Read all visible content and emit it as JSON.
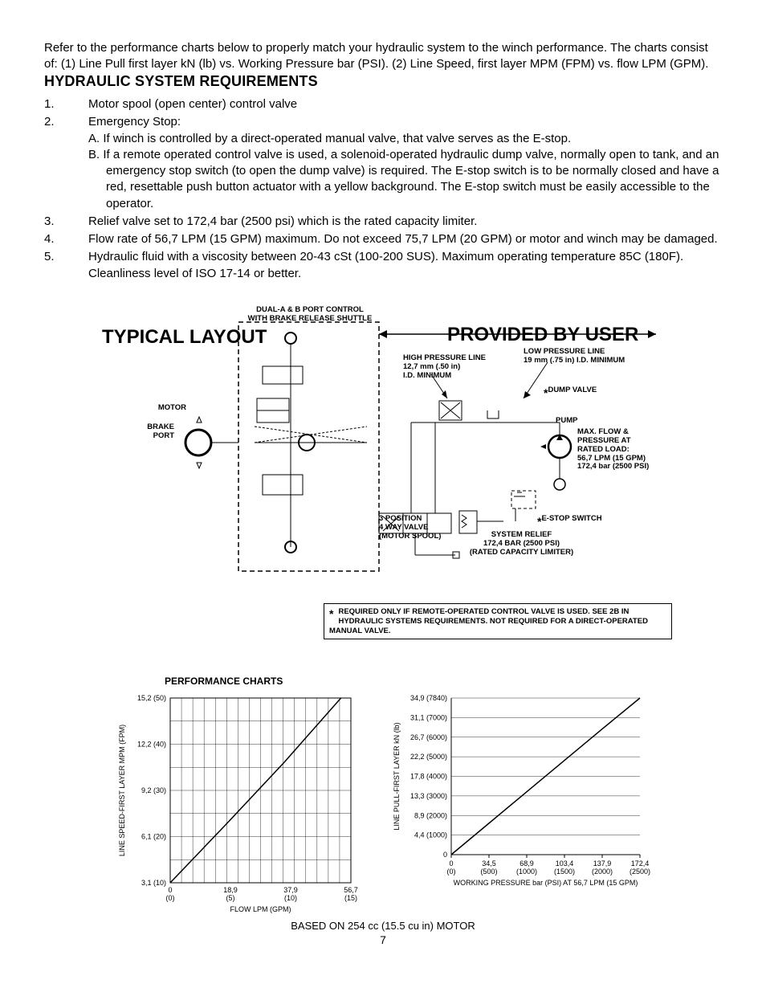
{
  "intro": "Refer to the performance charts below to properly match your hydraulic system to the winch performance. The charts consist of: (1) Line Pull first layer kN (lb) vs. Working Pressure bar (PSI). (2) Line Speed, first layer MPM (FPM) vs. flow LPM (GPM).",
  "section_title": "HYDRAULIC SYSTEM REQUIREMENTS",
  "reqs": {
    "r1": "Motor spool (open center) control valve",
    "r2": "Emergency Stop:",
    "r2a": "A. If winch is controlled by a direct-operated manual valve, that valve serves as the E-stop.",
    "r2b": "B.  If a remote operated  control valve is used, a solenoid-operated hydraulic dump valve, normally open to tank, and an emergency stop  switch (to open the dump valve)  is required. The E-stop switch is to be normally closed and have a red, resettable push button actuator with a yellow  background. The E-stop switch must be easily accessible to the operator.",
    "r3": "Relief valve set to 172,4 bar (2500 psi) which is the rated capacity limiter.",
    "r4": "Flow rate of 56,7 LPM (15 GPM) maximum. Do not exceed 75,7 LPM (20 GPM) or motor and winch may be damaged.",
    "r5": "Hydraulic fluid with a viscosity between 20-43 cSt (100-200 SUS). Maximum operating temperature 85C (180F). Cleanliness level of ISO 17-14 or better."
  },
  "diagram": {
    "dual_ab": "DUAL-A & B PORT CONTROL\nWITH BRAKE RELEASE SHUTTLE",
    "typical": "TYPICAL LAYOUT",
    "provided": "PROVIDED BY USER",
    "motor": "MOTOR",
    "brake": "BRAKE\nPORT",
    "hp": "HIGH PRESSURE LINE\n12,7 mm (.50 in)\nI.D. MINIMUM",
    "lp": "LOW PRESSURE LINE\n19 mm (.75 in) I.D. MINIMUM",
    "dump": "DUMP VALVE",
    "pump": "PUMP",
    "maxflow": "MAX. FLOW &\nPRESSURE AT\nRATED LOAD:\n56,7 LPM (15 GPM)\n172,4 bar (2500 PSI)",
    "pos3": "3 POSITION\n4 WAY VALVE\n(MOTOR SPOOL)",
    "estop": "E-STOP SWITCH",
    "relief": "SYSTEM RELIEF\n172,4 BAR (2500 PSI)\n(RATED CAPACITY LIMITER)",
    "note": "REQUIRED ONLY IF REMOTE-OPERATED CONTROL VALVE IS USED. SEE 2B IN HYDRAULIC SYSTEMS REQUIREMENTS. NOT REQUIRED FOR A DIRECT-OPERATED MANUAL VALVE."
  },
  "charts": {
    "title": "PERFORMANCE CHARTS",
    "caption": "BASED ON 254 cc (15.5 cu in) MOTOR",
    "speed": {
      "type": "line",
      "ylabel": "LINE SPEED-FIRST LAYER MPM (FPM)",
      "xlabel": "FLOW LPM (GPM)",
      "yticks": [
        "3,1 (10)",
        "6,1 (20)",
        "9,2 (30)",
        "12,2 (40)",
        "15,2 (50)"
      ],
      "xticks": [
        "0\n(0)",
        "18,9\n(5)",
        "37,9\n(10)",
        "56,7\n(15)"
      ],
      "data_x": [
        0,
        18.9,
        37.9,
        56.7
      ],
      "data_y": [
        3.1,
        7.0,
        11.0,
        15.2
      ],
      "xlim": [
        0,
        60
      ],
      "ylim": [
        3.1,
        15.2
      ],
      "grid_color": "#000",
      "line_color": "#000",
      "bg": "#fff"
    },
    "pull": {
      "type": "line",
      "ylabel": "LINE PULL-FIRST LAYER kN (lb)",
      "xlabel": "WORKING PRESSURE bar (PSI) AT 56,7 LPM (15 GPM)",
      "yticks": [
        "0",
        "4,4 (1000)",
        "8,9 (2000)",
        "13,3 (3000)",
        "17,8 (4000)",
        "22,2 (5000)",
        "26,7 (6000)",
        "31,1 (7000)",
        "34,9 (7840)"
      ],
      "xticks": [
        "0\n(0)",
        "34,5\n(500)",
        "68,9\n(1000)",
        "103,4\n(1500)",
        "137,9\n(2000)",
        "172,4\n(2500)"
      ],
      "data_x": [
        0,
        34.5,
        68.9,
        103.4,
        137.9,
        172.4
      ],
      "data_y": [
        0,
        7,
        14,
        21,
        28,
        34.9
      ],
      "xlim": [
        0,
        172.4
      ],
      "ylim": [
        0,
        34.9
      ],
      "grid_color": "#000",
      "line_color": "#000",
      "bg": "#fff"
    }
  },
  "page": "7"
}
